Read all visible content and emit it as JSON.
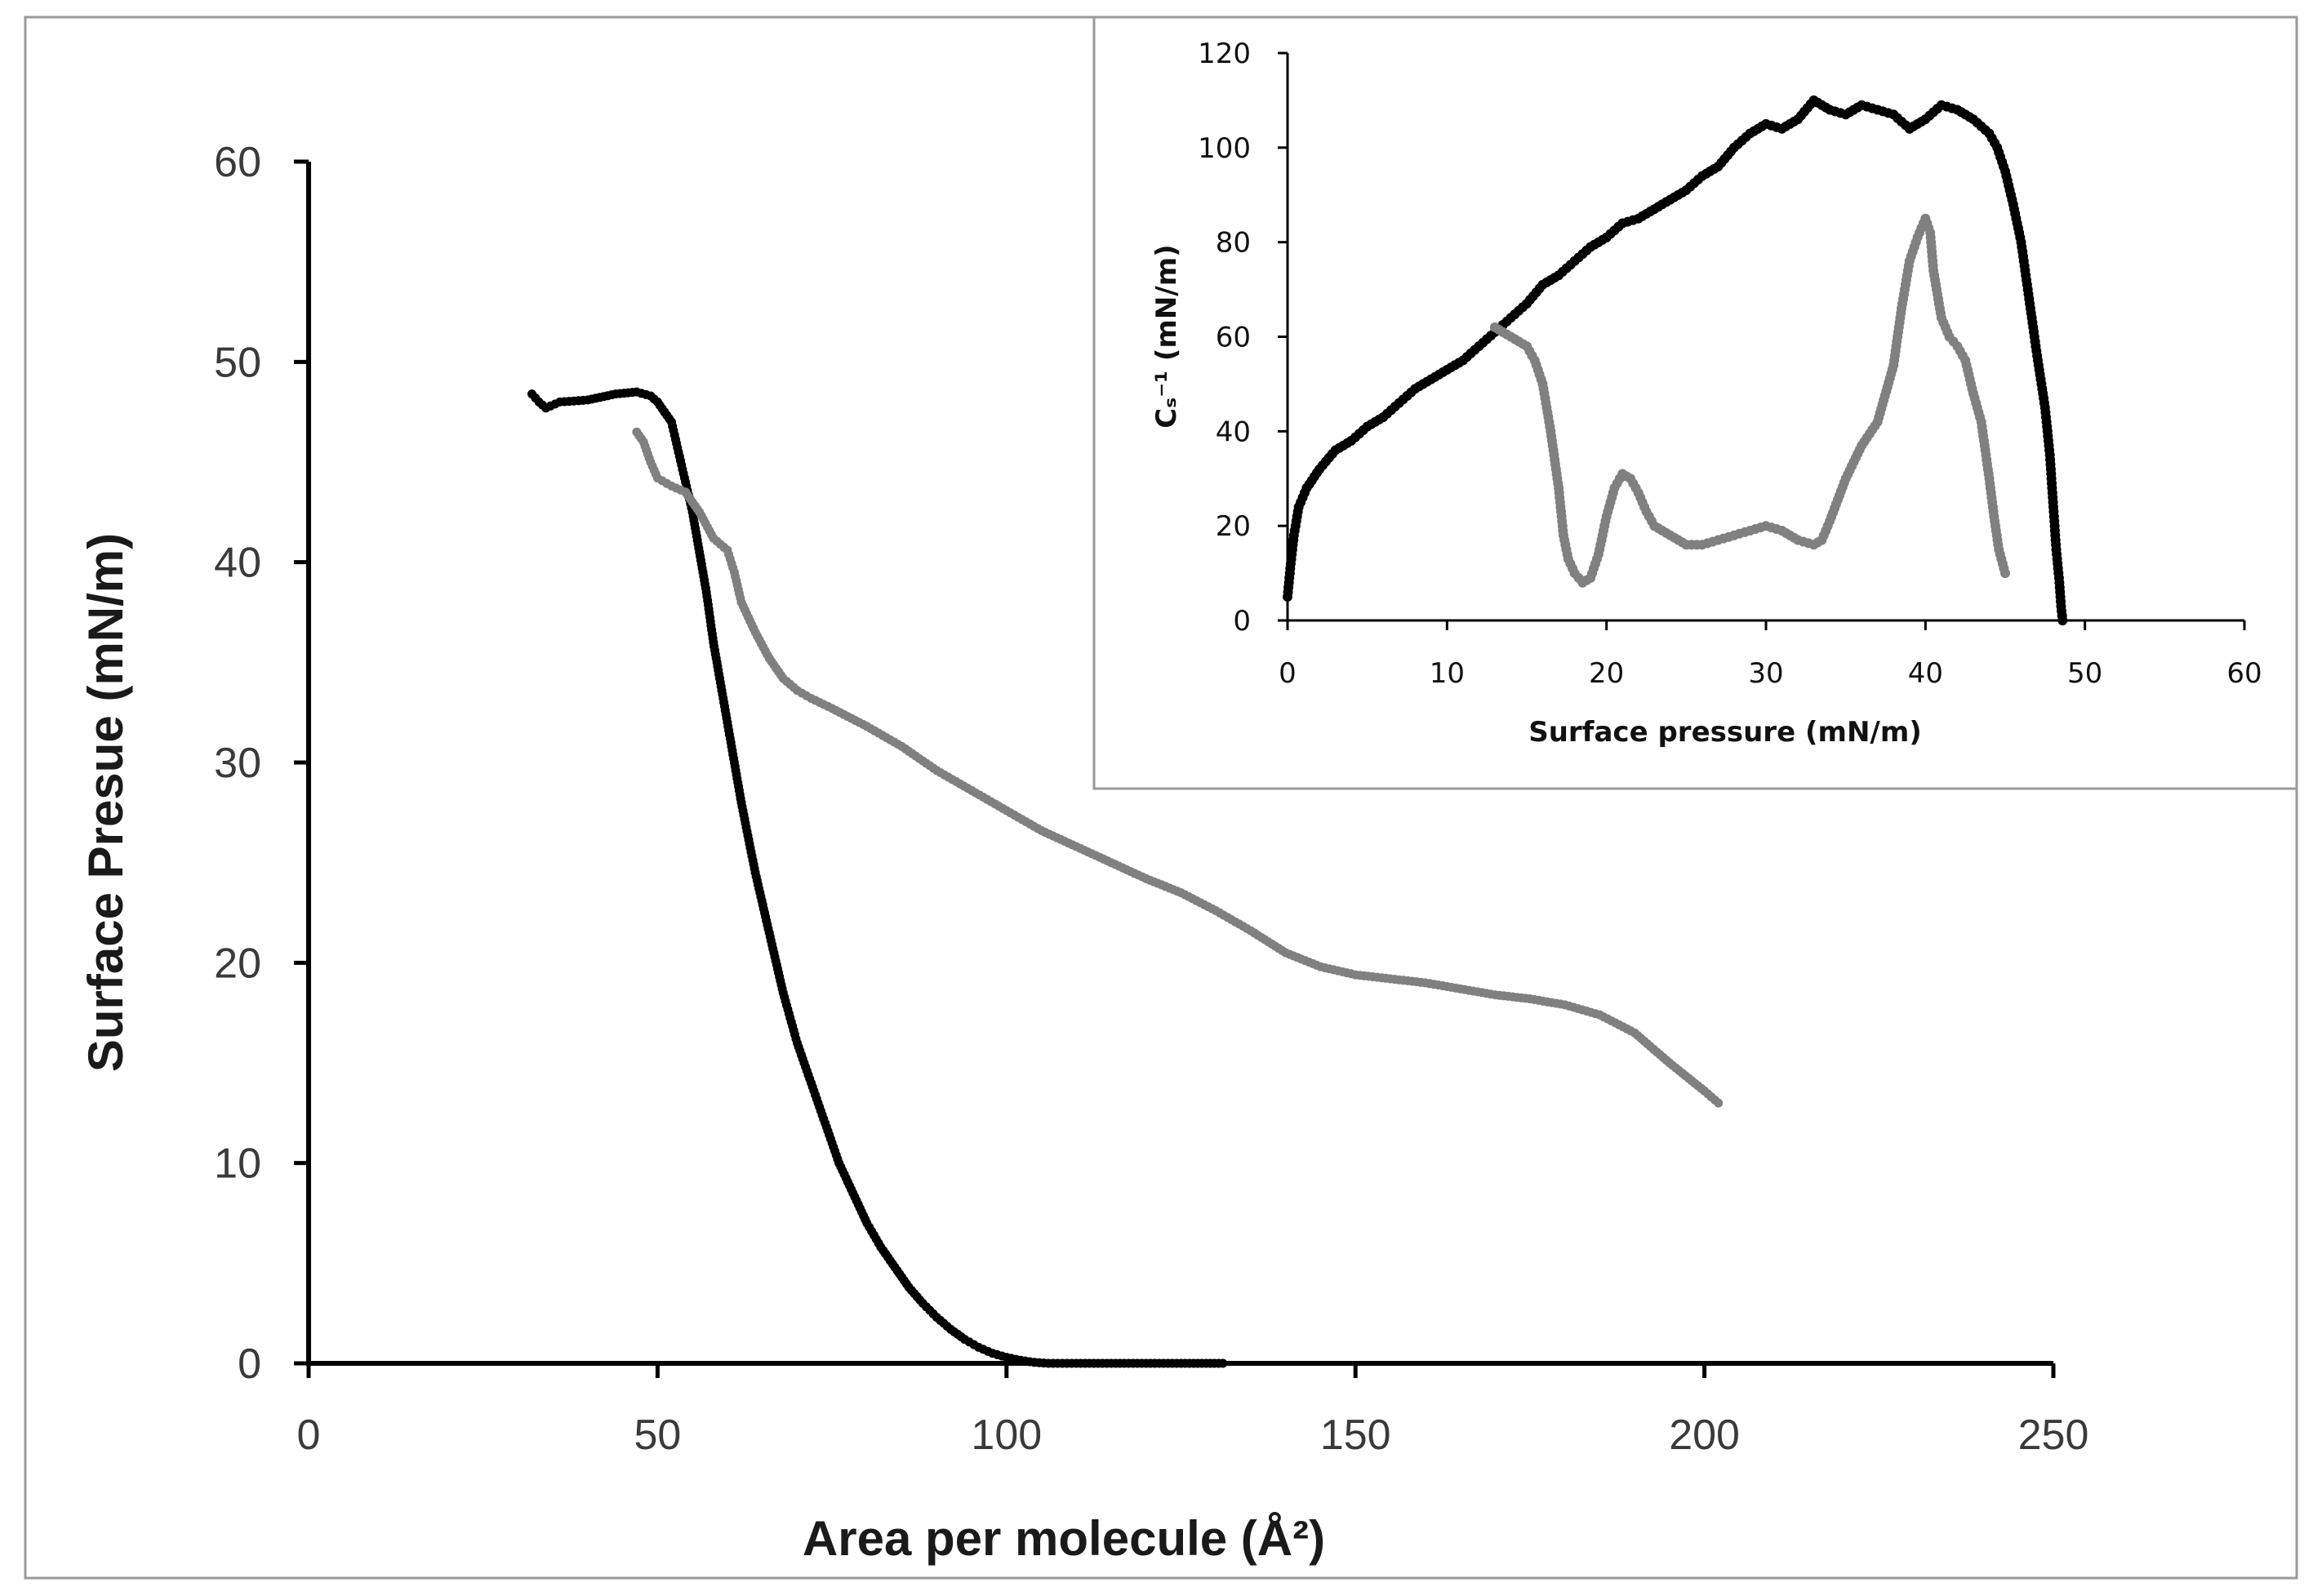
{
  "chart_data": [
    {
      "type": "scatter",
      "name": "main",
      "xlabel": "Area per molecule (Å²)",
      "ylabel": "Surface Presue (mN/m)",
      "xlim": [
        0,
        250
      ],
      "ylim": [
        0,
        60
      ],
      "x_ticks": [
        "0",
        "50",
        "100",
        "150",
        "200",
        "250"
      ],
      "y_ticks": [
        "0",
        "10",
        "20",
        "30",
        "40",
        "50",
        "60"
      ],
      "grid": false,
      "series": [
        {
          "name": "black",
          "color": "#000000",
          "points": [
            [
              32,
              48.4
            ],
            [
              33,
              48.0
            ],
            [
              34,
              47.7
            ],
            [
              36,
              48.0
            ],
            [
              40,
              48.1
            ],
            [
              44,
              48.4
            ],
            [
              47,
              48.5
            ],
            [
              49,
              48.3
            ],
            [
              50,
              48.0
            ],
            [
              51,
              47.5
            ],
            [
              52,
              47.0
            ],
            [
              53,
              45.5
            ],
            [
              54,
              44.0
            ],
            [
              55,
              42.5
            ],
            [
              56,
              40.5
            ],
            [
              57,
              38.5
            ],
            [
              58,
              36.0
            ],
            [
              60,
              32.0
            ],
            [
              62,
              28.0
            ],
            [
              64,
              24.5
            ],
            [
              66,
              21.5
            ],
            [
              68,
              18.5
            ],
            [
              70,
              16.0
            ],
            [
              72,
              14.0
            ],
            [
              74,
              12.0
            ],
            [
              76,
              10.0
            ],
            [
              78,
              8.5
            ],
            [
              80,
              7.0
            ],
            [
              82,
              5.8
            ],
            [
              84,
              4.8
            ],
            [
              86,
              3.8
            ],
            [
              88,
              3.0
            ],
            [
              90,
              2.3
            ],
            [
              92,
              1.7
            ],
            [
              94,
              1.2
            ],
            [
              96,
              0.8
            ],
            [
              98,
              0.5
            ],
            [
              100,
              0.3
            ],
            [
              102,
              0.15
            ],
            [
              104,
              0.05
            ],
            [
              106,
              0
            ],
            [
              110,
              0
            ],
            [
              115,
              0
            ],
            [
              120,
              0
            ],
            [
              125,
              0
            ],
            [
              131,
              0
            ]
          ]
        },
        {
          "name": "gray",
          "color": "#808080",
          "points": [
            [
              47,
              46.5
            ],
            [
              48,
              46.0
            ],
            [
              49,
              45.0
            ],
            [
              50,
              44.2
            ],
            [
              52,
              43.8
            ],
            [
              54,
              43.5
            ],
            [
              56,
              42.5
            ],
            [
              58,
              41.2
            ],
            [
              60,
              40.6
            ],
            [
              61,
              39.5
            ],
            [
              62,
              38.0
            ],
            [
              64,
              36.5
            ],
            [
              66,
              35.2
            ],
            [
              68,
              34.2
            ],
            [
              70,
              33.6
            ],
            [
              72,
              33.2
            ],
            [
              75,
              32.7
            ],
            [
              80,
              31.8
            ],
            [
              85,
              30.8
            ],
            [
              90,
              29.6
            ],
            [
              95,
              28.6
            ],
            [
              100,
              27.6
            ],
            [
              105,
              26.6
            ],
            [
              110,
              25.8
            ],
            [
              115,
              25.0
            ],
            [
              120,
              24.2
            ],
            [
              125,
              23.5
            ],
            [
              130,
              22.6
            ],
            [
              135,
              21.6
            ],
            [
              140,
              20.5
            ],
            [
              145,
              19.8
            ],
            [
              150,
              19.4
            ],
            [
              155,
              19.2
            ],
            [
              160,
              19.0
            ],
            [
              165,
              18.7
            ],
            [
              170,
              18.4
            ],
            [
              175,
              18.2
            ],
            [
              180,
              17.9
            ],
            [
              185,
              17.4
            ],
            [
              190,
              16.5
            ],
            [
              195,
              15.0
            ],
            [
              200,
              13.6
            ],
            [
              202,
              13.0
            ]
          ]
        }
      ]
    },
    {
      "type": "scatter",
      "name": "inset",
      "xlabel": "Surface pressure (mN/m)",
      "ylabel": "Cₛ⁻¹ (mN/m)",
      "xlim": [
        0,
        60
      ],
      "ylim": [
        0,
        120
      ],
      "x_ticks": [
        "0",
        "10",
        "20",
        "30",
        "40",
        "50",
        "60"
      ],
      "y_ticks": [
        "0",
        "20",
        "40",
        "60",
        "80",
        "100",
        "120"
      ],
      "grid": false,
      "series": [
        {
          "name": "black",
          "color": "#000000",
          "points": [
            [
              0,
              5
            ],
            [
              0.2,
              12
            ],
            [
              0.4,
              18
            ],
            [
              0.7,
              24
            ],
            [
              1.2,
              28
            ],
            [
              2,
              32
            ],
            [
              3,
              36
            ],
            [
              4,
              38
            ],
            [
              5,
              41
            ],
            [
              6,
              43
            ],
            [
              7,
              46
            ],
            [
              8,
              49
            ],
            [
              9,
              51
            ],
            [
              10,
              53
            ],
            [
              11,
              55
            ],
            [
              12,
              58
            ],
            [
              13,
              61
            ],
            [
              14,
              64
            ],
            [
              15,
              67
            ],
            [
              16,
              71
            ],
            [
              17,
              73
            ],
            [
              18,
              76
            ],
            [
              19,
              79
            ],
            [
              20,
              81
            ],
            [
              21,
              84
            ],
            [
              22,
              85
            ],
            [
              23,
              87
            ],
            [
              24,
              89
            ],
            [
              25,
              91
            ],
            [
              26,
              94
            ],
            [
              27,
              96
            ],
            [
              28,
              100
            ],
            [
              29,
              103
            ],
            [
              30,
              105
            ],
            [
              31,
              104
            ],
            [
              32,
              106
            ],
            [
              33,
              110
            ],
            [
              34,
              108
            ],
            [
              35,
              107
            ],
            [
              36,
              109
            ],
            [
              37,
              108
            ],
            [
              38,
              107
            ],
            [
              39,
              104
            ],
            [
              40,
              106
            ],
            [
              41,
              109
            ],
            [
              42,
              108
            ],
            [
              43,
              106
            ],
            [
              44,
              103
            ],
            [
              44.5,
              100
            ],
            [
              45,
              95
            ],
            [
              45.5,
              88
            ],
            [
              46,
              80
            ],
            [
              46.5,
              68
            ],
            [
              47,
              56
            ],
            [
              47.5,
              45
            ],
            [
              47.8,
              35
            ],
            [
              48,
              25
            ],
            [
              48.2,
              15
            ],
            [
              48.4,
              8
            ],
            [
              48.5,
              3
            ],
            [
              48.6,
              0
            ]
          ]
        },
        {
          "name": "gray",
          "color": "#808080",
          "points": [
            [
              13,
              62
            ],
            [
              14,
              60
            ],
            [
              15,
              58
            ],
            [
              15.5,
              55
            ],
            [
              16,
              50
            ],
            [
              16.5,
              40
            ],
            [
              17,
              28
            ],
            [
              17.3,
              18
            ],
            [
              17.6,
              13
            ],
            [
              18,
              10
            ],
            [
              18.5,
              8
            ],
            [
              19,
              9
            ],
            [
              19.5,
              14
            ],
            [
              20,
              22
            ],
            [
              20.5,
              28
            ],
            [
              21,
              31
            ],
            [
              21.5,
              30
            ],
            [
              22,
              27
            ],
            [
              22.5,
              23
            ],
            [
              23,
              20
            ],
            [
              24,
              18
            ],
            [
              25,
              16
            ],
            [
              26,
              16
            ],
            [
              27,
              17
            ],
            [
              28,
              18
            ],
            [
              29,
              19
            ],
            [
              30,
              20
            ],
            [
              31,
              19
            ],
            [
              31.5,
              18
            ],
            [
              32,
              17
            ],
            [
              33,
              16
            ],
            [
              33.5,
              17
            ],
            [
              34,
              21
            ],
            [
              35,
              30
            ],
            [
              36,
              37
            ],
            [
              37,
              42
            ],
            [
              38,
              54
            ],
            [
              38.5,
              66
            ],
            [
              39,
              76
            ],
            [
              39.5,
              81
            ],
            [
              40,
              85
            ],
            [
              40.3,
              82
            ],
            [
              40.5,
              74
            ],
            [
              41,
              64
            ],
            [
              41.5,
              60
            ],
            [
              42,
              58
            ],
            [
              42.5,
              55
            ],
            [
              43,
              48
            ],
            [
              43.5,
              42
            ],
            [
              44,
              30
            ],
            [
              44.3,
              22
            ],
            [
              44.6,
              15
            ],
            [
              45,
              10
            ]
          ]
        }
      ]
    }
  ]
}
